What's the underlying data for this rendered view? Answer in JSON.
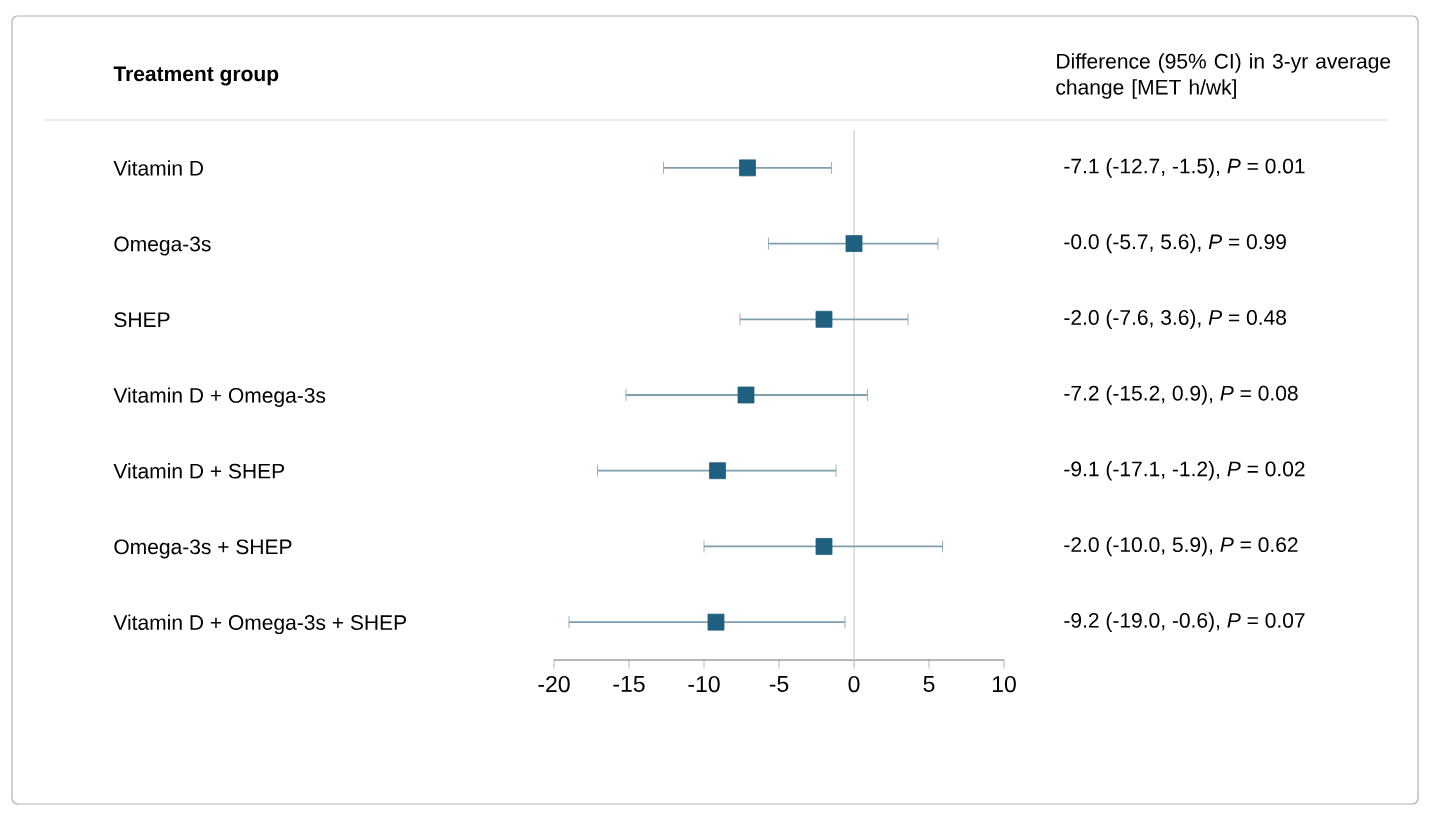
{
  "chart_data": {
    "type": "scatter",
    "orientation": "horizontal",
    "categories": [
      "Vitamin D",
      "Omega-3s",
      "SHEP",
      "Vitamin D + Omega-3s",
      "Vitamin D + SHEP",
      "Omega-3s + SHEP",
      "Vitamin D + Omega-3s + SHEP"
    ],
    "values": [
      -7.1,
      0.0,
      -2.0,
      -7.2,
      -9.1,
      -2.0,
      -9.2
    ],
    "errors": [
      [
        -12.7,
        -1.5
      ],
      [
        -5.7,
        5.6
      ],
      [
        -7.6,
        3.6
      ],
      [
        -15.2,
        0.9
      ],
      [
        -17.1,
        -1.2
      ],
      [
        -10.0,
        5.9
      ],
      [
        -19.0,
        -0.6
      ]
    ],
    "annotations": [
      "Treatment group",
      "Difference (95% CI) in 3-yr average change [MET h/wk]",
      "-7.1 (-12.7, -1.5), *P* = 0.01",
      "-0.0 (-5.7, 5.6), *P* = 0.99",
      "-2.0 (-7.6, 3.6), *P* = 0.48",
      "-7.2 (-15.2, 0.9), *P* = 0.08",
      "-9.1 (-17.1, -1.2), *P* = 0.02",
      "-2.0 (-10.0, 5.9), *P* = 0.62",
      "-9.2 (-19.0, -0.6), *P* = 0.07"
    ],
    "color": "#1f5f80",
    "marker": "square",
    "xlim": [
      -20,
      10
    ],
    "xticks": [
      -20,
      -15,
      -10,
      -5,
      0,
      5,
      10
    ],
    "ref_lines": [
      {
        "axis": "x",
        "value": 0,
        "color": "#d9d9d9"
      }
    ]
  }
}
